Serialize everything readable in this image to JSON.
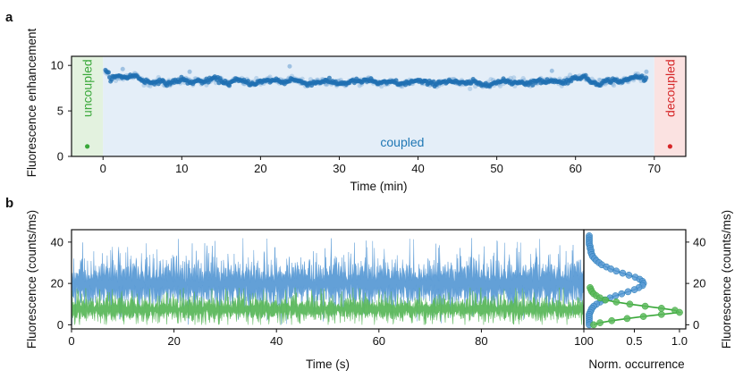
{
  "chart_data": [
    {
      "panel": "a",
      "type": "scatter",
      "xlabel": "Time (min)",
      "ylabel": "Fluorescence enhancement",
      "xlim": [
        -4,
        74
      ],
      "ylim": [
        0,
        11
      ],
      "xticks": [
        0,
        10,
        20,
        30,
        40,
        50,
        60,
        70
      ],
      "yticks": [
        0,
        5,
        10
      ],
      "grid": false,
      "regions": [
        {
          "label": "uncoupled",
          "x_range": [
            -4,
            0
          ],
          "color": "#3aa83a",
          "fill": "#e3f2df",
          "marker_x": -2,
          "marker_y": 1.1
        },
        {
          "label": "coupled",
          "x_range": [
            0,
            70
          ],
          "color": "#1f77b4",
          "fill": "#e4eef8"
        },
        {
          "label": "decoupled",
          "x_range": [
            70,
            74
          ],
          "color": "#d62728",
          "fill": "#fbe2e1",
          "marker_x": 72,
          "marker_y": 1.1
        }
      ],
      "series": [
        {
          "color": "#1f77b4",
          "x": [
            0,
            0.5,
            1,
            2,
            3,
            4,
            5,
            6,
            7,
            8,
            9,
            10,
            11,
            12,
            13,
            14,
            15,
            16,
            17,
            18,
            19,
            20,
            21,
            22,
            23,
            24,
            25,
            26,
            27,
            28,
            29,
            30,
            31,
            32,
            33,
            34,
            35,
            36,
            37,
            38,
            39,
            40,
            41,
            42,
            43,
            44,
            45,
            46,
            47,
            48,
            49,
            50,
            51,
            52,
            53,
            54,
            55,
            56,
            57,
            58,
            59,
            60,
            61,
            62,
            63,
            64,
            65,
            66,
            67,
            68,
            69
          ],
          "y": [
            9.4,
            9.2,
            8.6,
            8.8,
            8.7,
            8.9,
            8.4,
            8.1,
            8.3,
            8.0,
            8.2,
            8.5,
            8.1,
            8.3,
            8.2,
            8.6,
            8.3,
            8.0,
            8.4,
            8.2,
            8.0,
            8.2,
            8.3,
            8.4,
            8.1,
            8.5,
            8.2,
            8.0,
            8.1,
            8.3,
            8.2,
            8.0,
            8.1,
            8.3,
            8.2,
            8.4,
            8.0,
            8.1,
            8.2,
            7.9,
            8.2,
            8.3,
            8.1,
            8.0,
            8.2,
            8.3,
            8.1,
            8.0,
            8.2,
            7.9,
            8.0,
            8.1,
            8.3,
            8.1,
            8.2,
            8.0,
            8.3,
            8.2,
            8.4,
            8.1,
            8.3,
            8.6,
            8.8,
            8.2,
            8.0,
            8.3,
            8.4,
            8.2,
            8.6,
            8.8,
            8.5
          ]
        }
      ],
      "outliers": {
        "x": [
          2.5,
          11,
          23.7,
          57,
          69
        ],
        "y": [
          9.6,
          9.3,
          9.9,
          9.4,
          9.3
        ]
      }
    },
    {
      "panel": "b",
      "type": "area",
      "xlabel": "Time (s)",
      "ylabel": "Fluorescence (counts/ms)",
      "xlim": [
        0,
        100
      ],
      "ylim": [
        -2,
        46
      ],
      "xticks": [
        0,
        20,
        40,
        60,
        80,
        100
      ],
      "yticks": [
        0,
        20,
        40
      ],
      "grid": false,
      "series": [
        {
          "color": "#5b9bd5",
          "mean": 20,
          "spread": 6.5,
          "peak": 43
        },
        {
          "color": "#5cb85c",
          "mean": 7.5,
          "spread": 3.2,
          "peak": 18
        }
      ]
    },
    {
      "panel": "b-side",
      "type": "line",
      "xlabel": "Norm. occurrence",
      "ylabel": "Fluorescence (counts/ms)",
      "xlim": [
        0,
        1.05
      ],
      "ylim": [
        -2,
        46
      ],
      "xticks": [
        0.5,
        1.0
      ],
      "xtick_labels": [
        "0.5",
        "1.0"
      ],
      "yticks": [
        0,
        20,
        40
      ],
      "series": [
        {
          "color": "#1f77b4",
          "y": [
            43,
            42,
            41,
            40,
            39,
            38,
            37,
            36,
            35,
            34,
            33,
            32,
            31,
            30,
            29,
            28,
            27,
            26,
            25,
            24,
            23,
            22,
            21,
            20,
            19,
            18,
            17,
            16,
            15,
            14,
            13,
            12,
            11,
            10,
            9,
            8,
            7,
            6,
            5,
            4,
            3,
            2,
            1,
            0
          ],
          "x": [
            0.0,
            0.0,
            0.0,
            0.0,
            0.0,
            0.01,
            0.01,
            0.02,
            0.02,
            0.03,
            0.04,
            0.06,
            0.08,
            0.11,
            0.14,
            0.19,
            0.24,
            0.3,
            0.37,
            0.44,
            0.51,
            0.56,
            0.59,
            0.6,
            0.59,
            0.55,
            0.5,
            0.43,
            0.36,
            0.29,
            0.23,
            0.17,
            0.12,
            0.08,
            0.05,
            0.03,
            0.02,
            0.01,
            0.0,
            0.0,
            0.0,
            0.0,
            0.0,
            0.0
          ]
        },
        {
          "color": "#3aa83a",
          "y": [
            18,
            17,
            16,
            15,
            14,
            13,
            12,
            11,
            10,
            9,
            8,
            7,
            6,
            5,
            4,
            3,
            2,
            1,
            0
          ],
          "x": [
            0.01,
            0.02,
            0.03,
            0.05,
            0.08,
            0.12,
            0.18,
            0.3,
            0.45,
            0.62,
            0.8,
            0.95,
            1.0,
            0.8,
            0.6,
            0.42,
            0.25,
            0.12,
            0.05
          ]
        }
      ]
    }
  ]
}
